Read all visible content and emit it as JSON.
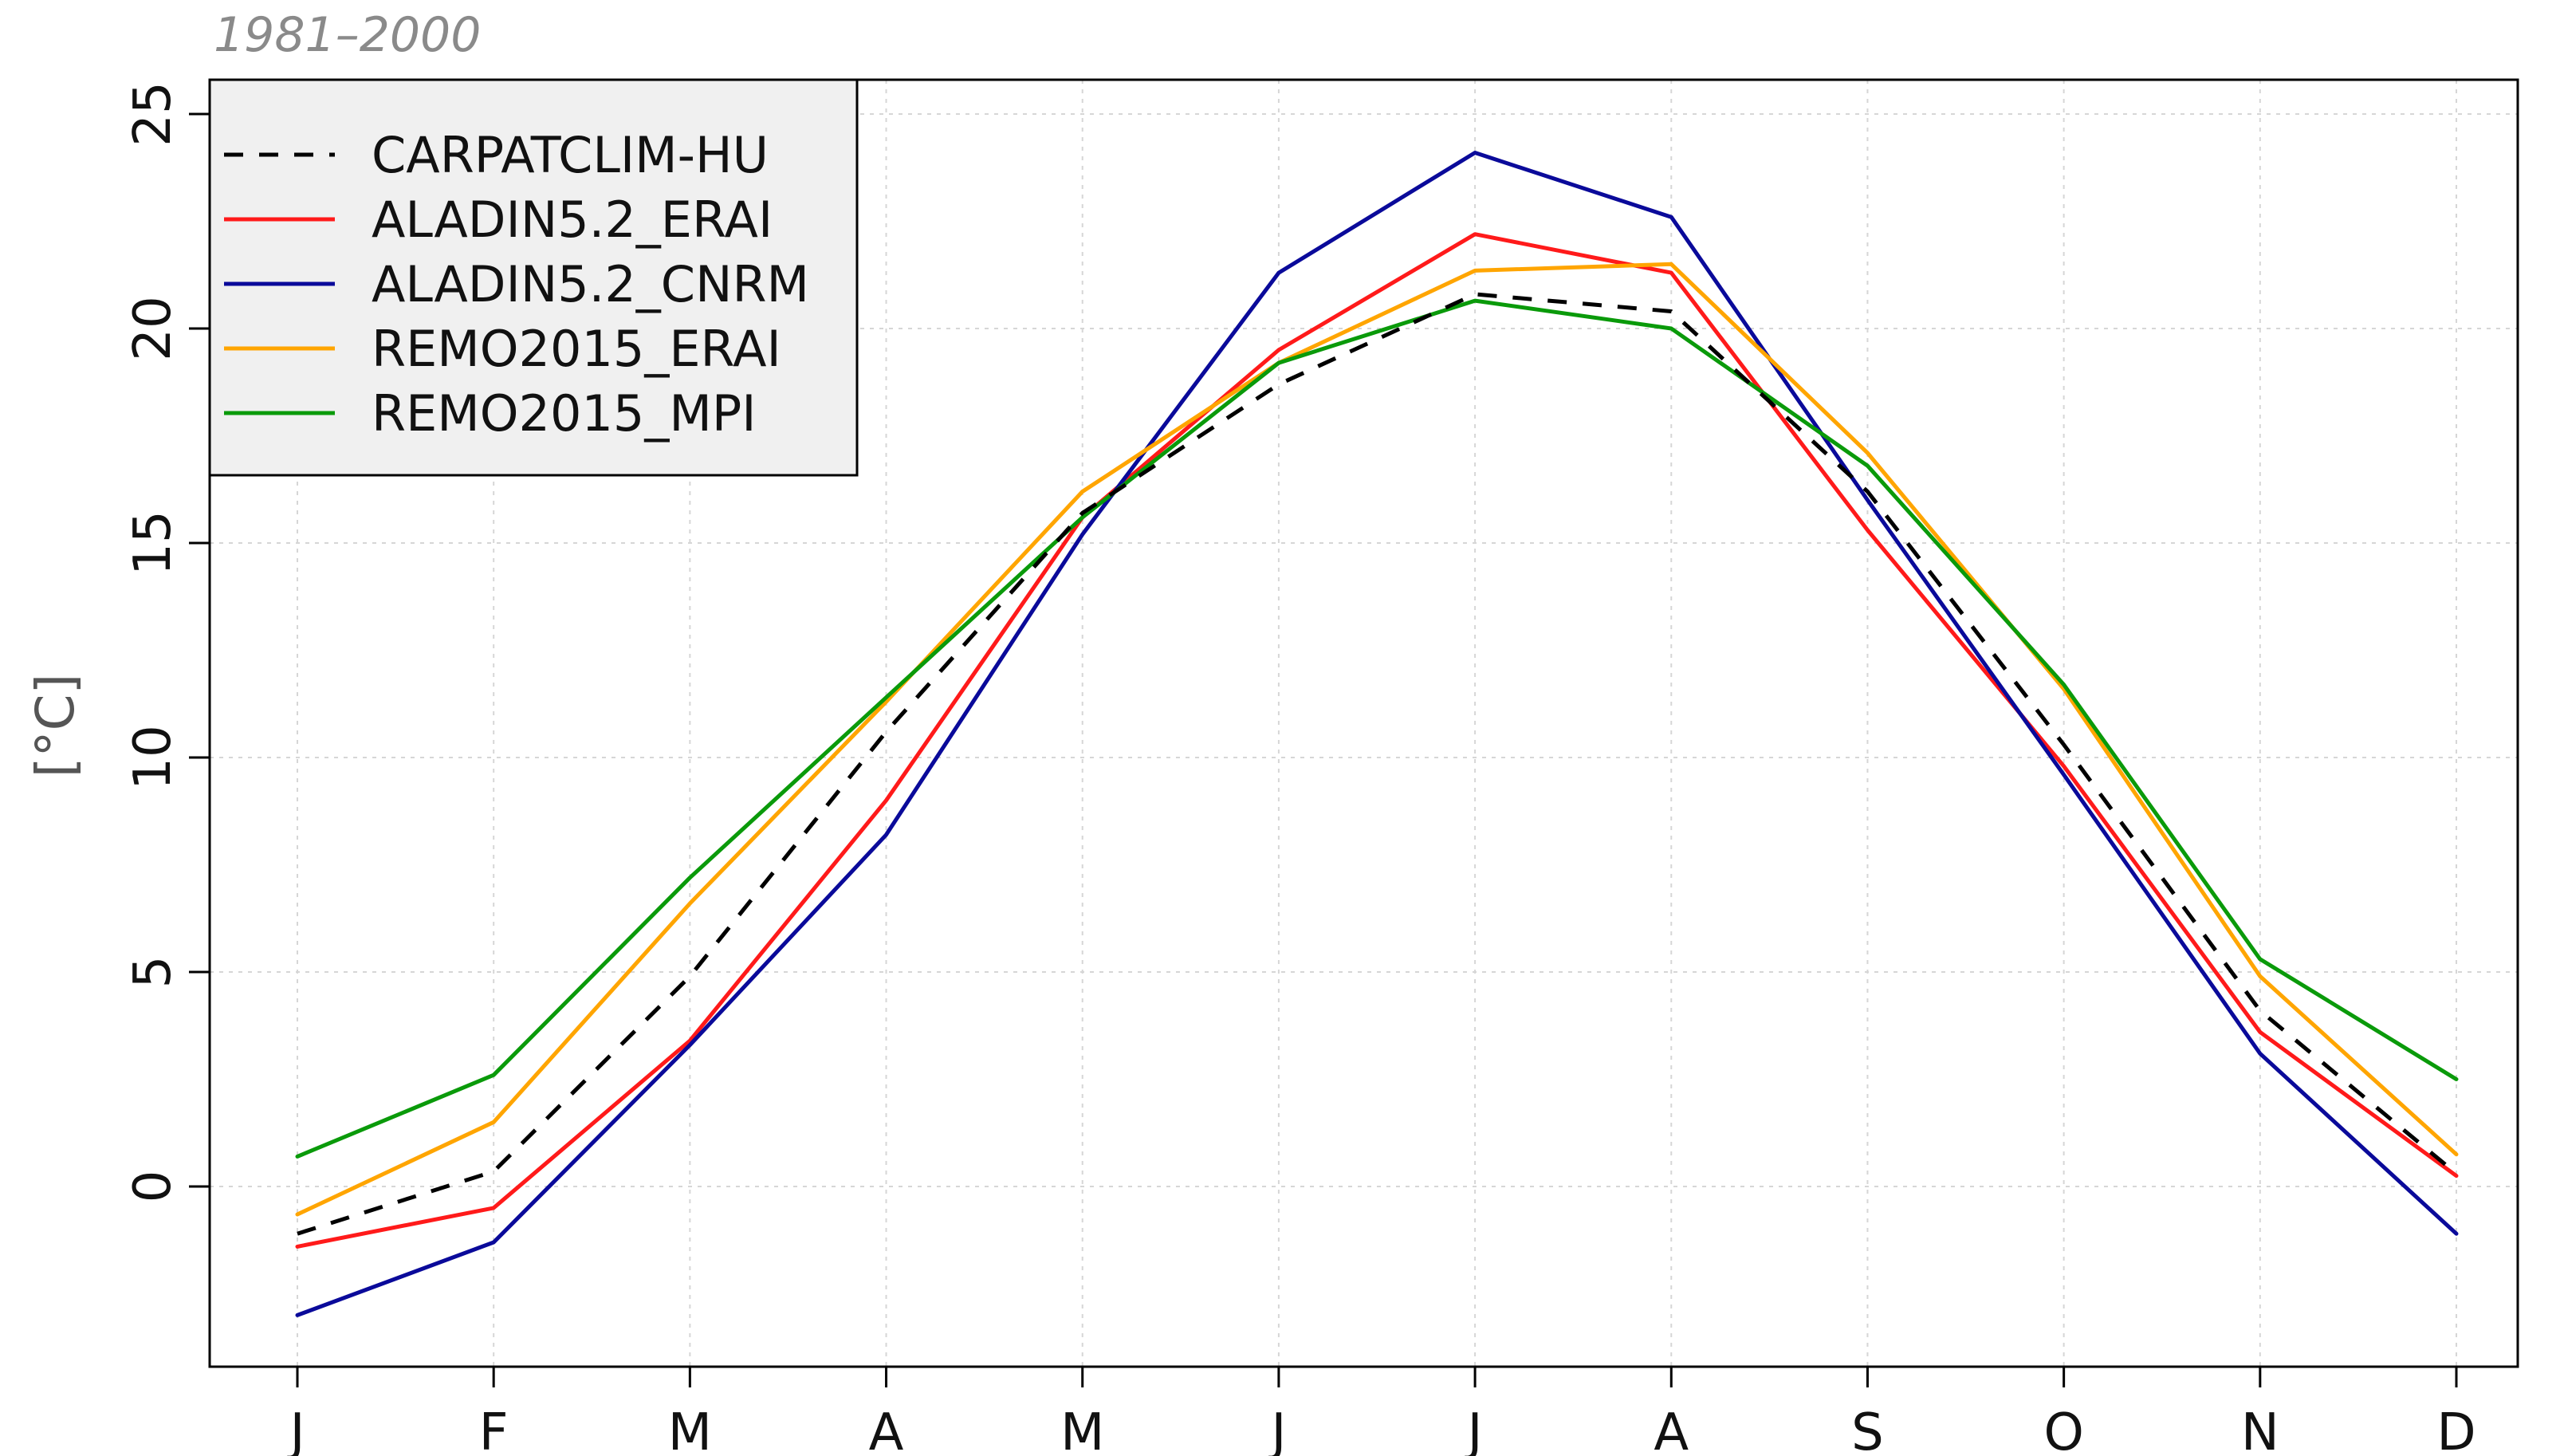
{
  "chart_data": {
    "type": "line",
    "title": "1981–2000",
    "xlabel": "",
    "ylabel": "[°C]",
    "categories": [
      "J",
      "F",
      "M",
      "A",
      "M",
      "J",
      "J",
      "A",
      "S",
      "O",
      "N",
      "D"
    ],
    "yticks": [
      0,
      5,
      10,
      15,
      20,
      25
    ],
    "ylim": [
      -4.2,
      25.8
    ],
    "grid": true,
    "legend_position": "top-left",
    "series": [
      {
        "name": "CARPATCLIM-HU",
        "color": "#000000",
        "dashed": true,
        "values": [
          -1.1,
          0.35,
          4.9,
          10.6,
          15.7,
          18.7,
          20.8,
          20.4,
          16.2,
          10.3,
          4.1,
          0.3
        ]
      },
      {
        "name": "ALADIN5.2_ERAI",
        "color": "#ff1a1a",
        "dashed": false,
        "values": [
          -1.4,
          -0.5,
          3.4,
          9.0,
          15.6,
          19.5,
          22.2,
          21.3,
          15.3,
          9.8,
          3.6,
          0.25
        ]
      },
      {
        "name": "ALADIN5.2_CNRM",
        "color": "#0a0a9a",
        "dashed": false,
        "values": [
          -3.0,
          -1.3,
          3.3,
          8.2,
          15.2,
          21.3,
          24.1,
          22.6,
          16.0,
          9.6,
          3.1,
          -1.1
        ]
      },
      {
        "name": "REMO2015_ERAI",
        "color": "#ffa500",
        "dashed": false,
        "values": [
          -0.65,
          1.5,
          6.6,
          11.3,
          16.2,
          19.2,
          21.35,
          21.5,
          17.1,
          11.6,
          4.9,
          0.75
        ]
      },
      {
        "name": "REMO2015_MPI",
        "color": "#0a9a0a",
        "dashed": false,
        "values": [
          0.7,
          2.6,
          7.2,
          11.4,
          15.6,
          19.2,
          20.65,
          20.0,
          16.8,
          11.7,
          5.3,
          2.5
        ]
      }
    ]
  }
}
